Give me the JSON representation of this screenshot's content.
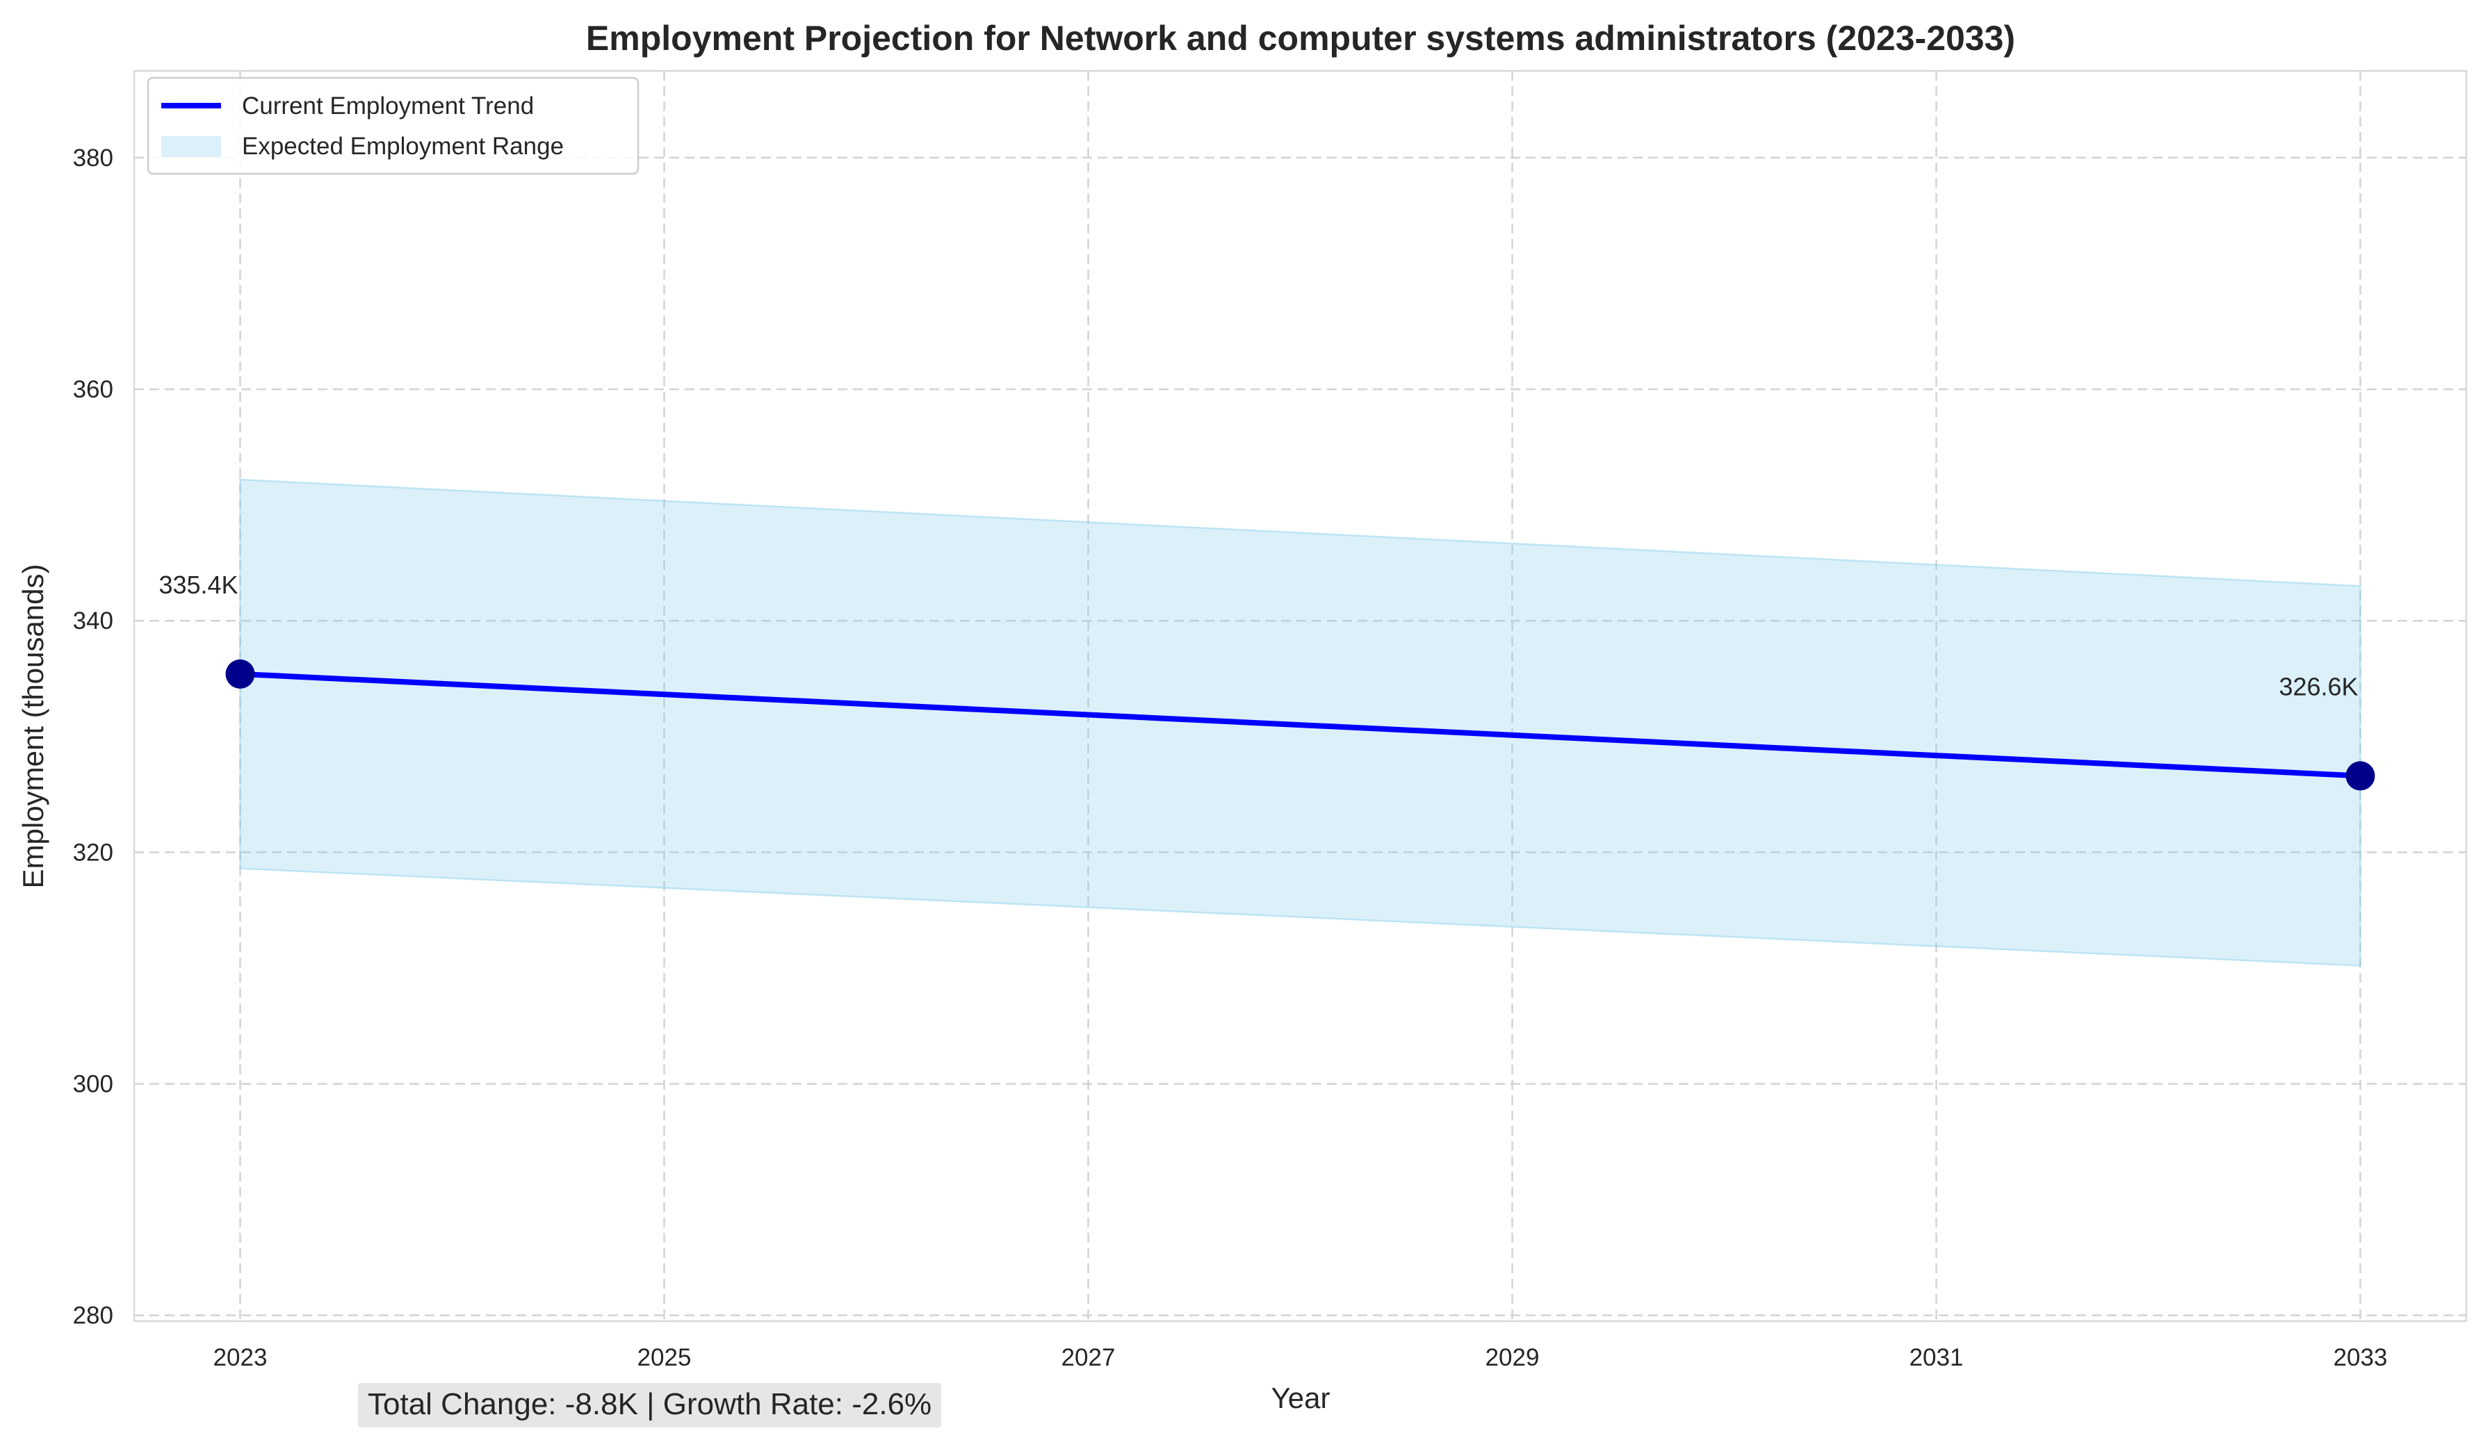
{
  "chart_data": {
    "type": "line",
    "title": "Employment Projection for Network and computer systems administrators (2023-2033)",
    "xlabel": "Year",
    "ylabel": "Employment (thousands)",
    "x_ticks": [
      "2023",
      "2025",
      "2027",
      "2029",
      "2031",
      "2033"
    ],
    "y_ticks": [
      "280",
      "300",
      "320",
      "340",
      "360",
      "380"
    ],
    "xlim": [
      2022.5,
      2033.5
    ],
    "ylim": [
      279.5,
      387.5
    ],
    "grid": true,
    "legend_placement": "top-left",
    "series": [
      {
        "name": "Current Employment Trend",
        "type": "line",
        "color": "#0000ff",
        "x": [
          2023,
          2033
        ],
        "y": [
          335.4,
          326.6
        ]
      },
      {
        "name": "Expected Employment Range",
        "type": "area",
        "color": "#87ceeb",
        "x": [
          2023,
          2033
        ],
        "y_low": [
          318.6,
          310.2
        ],
        "y_high": [
          352.2,
          343.0
        ]
      }
    ],
    "markers": {
      "color": "#00008b",
      "x": [
        2023,
        2033
      ],
      "y": [
        335.4,
        326.6
      ]
    },
    "annotations": [
      {
        "text": "335.4K",
        "x": 2023,
        "y": 335.4
      },
      {
        "text": "326.6K",
        "x": 2033,
        "y": 326.6
      }
    ]
  },
  "summary_text": "Total Change: -8.8K | Growth Rate: -2.6%"
}
